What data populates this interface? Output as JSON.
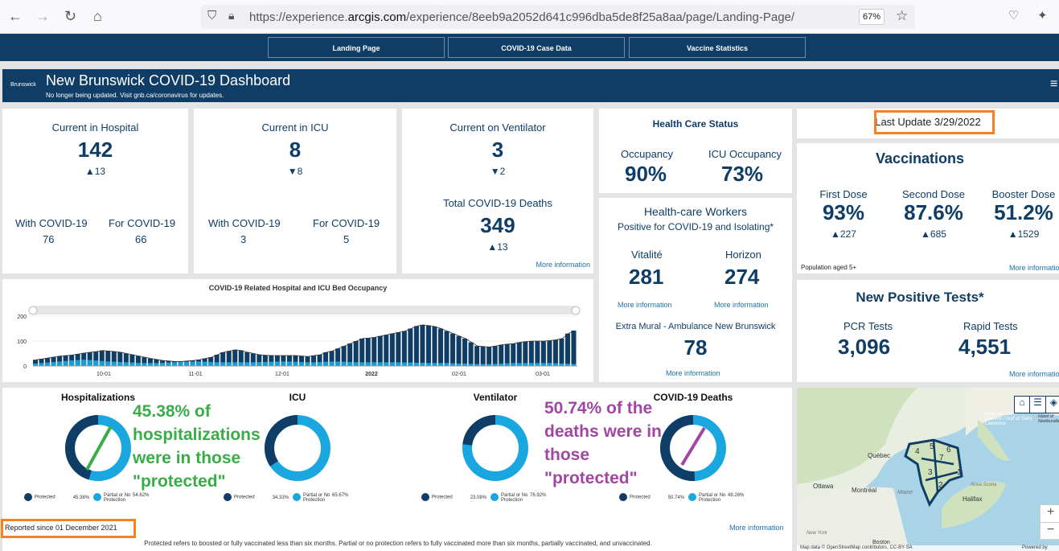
{
  "browser": {
    "url_prefix": "https://experience.",
    "url_domain": "arcgis.com",
    "url_rest": "/experience/8eeb9a2052d641c996dba5de8f25a8aa/page/Landing-Page/",
    "zoom": "67%"
  },
  "nav": [
    "Landing Page",
    "COVID-19 Case Data",
    "Vaccine Statistics"
  ],
  "header": {
    "logo": "Brunswick",
    "title": "New Brunswick COVID-19 Dashboard",
    "subtitle": "No longer being updated. Visit gnb.ca/coronavirus for updates."
  },
  "hospital": {
    "label": "Current in Hospital",
    "value": "142",
    "change": "▲13",
    "with_label": "With COVID-19",
    "with_value": "76",
    "for_label": "For COVID-19",
    "for_value": "66"
  },
  "icu": {
    "label": "Current in ICU",
    "value": "8",
    "change": "▼8",
    "with_label": "With COVID-19",
    "with_value": "3",
    "for_label": "For COVID-19",
    "for_value": "5"
  },
  "ventilator": {
    "label": "Current on Ventilator",
    "value": "3",
    "change": "▼2",
    "deaths_label": "Total COVID-19 Deaths",
    "deaths_value": "349",
    "deaths_change": "▲13",
    "more": "More information"
  },
  "health_status": {
    "title": "Health Care Status",
    "occ_label": "Occupancy",
    "occ_value": "90%",
    "icu_label": "ICU Occupancy",
    "icu_value": "73%"
  },
  "workers": {
    "title": "Health-care Workers",
    "subtitle": "Positive for COVID-19 and Isolating*",
    "vit_label": "Vitalité",
    "vit_value": "281",
    "hor_label": "Horizon",
    "hor_value": "274",
    "more": "More information",
    "em_label": "Extra Mural - Ambulance New Brunswick",
    "em_value": "78"
  },
  "last_update": "Last Update 3/29/2022",
  "vaccinations": {
    "title": "Vaccinations",
    "doses": [
      {
        "label": "First Dose",
        "value": "93%",
        "change": "▲227"
      },
      {
        "label": "Second Dose",
        "value": "87.6%",
        "change": "▲685"
      },
      {
        "label": "Booster Dose",
        "value": "51.2%",
        "change": "▲1529"
      }
    ],
    "note": "Population aged 5+",
    "more": "More information"
  },
  "tests": {
    "title": "New Positive Tests*",
    "pcr_label": "PCR Tests",
    "pcr_value": "3,096",
    "rapid_label": "Rapid Tests",
    "rapid_value": "4,551",
    "more": "More information"
  },
  "chart_data": {
    "type": "bar",
    "title": "COVID-19 Related Hospital and ICU Bed Occupancy",
    "ylim": [
      0,
      200
    ],
    "yticks": [
      "0",
      "100",
      "200"
    ],
    "xticks": [
      "10-01",
      "11-01",
      "12-01",
      "2022",
      "02-01",
      "03-01"
    ],
    "series": [
      {
        "name": "Hospital",
        "color": "#0f3d66",
        "values": [
          25,
          28,
          32,
          36,
          40,
          42,
          44,
          48,
          52,
          55,
          58,
          62,
          60,
          58,
          55,
          50,
          45,
          40,
          35,
          30,
          26,
          22,
          20,
          18,
          18,
          20,
          22,
          25,
          30,
          35,
          45,
          55,
          60,
          65,
          62,
          55,
          50,
          45,
          43,
          42,
          42,
          42,
          42,
          42,
          40,
          38,
          42,
          45,
          55,
          60,
          70,
          80,
          90,
          100,
          110,
          112,
          115,
          120,
          125,
          130,
          135,
          140,
          150,
          160,
          165,
          162,
          158,
          150,
          140,
          130,
          120,
          110,
          95,
          80,
          78,
          76,
          80,
          85,
          88,
          90,
          95,
          98,
          100,
          100,
          100,
          102,
          105,
          110,
          130,
          142
        ]
      },
      {
        "name": "ICU",
        "color": "#1aa7e0",
        "values": [
          10,
          12,
          14,
          16,
          18,
          20,
          22,
          24,
          25,
          24,
          22,
          20,
          18,
          17,
          16,
          15,
          14,
          13,
          12,
          12,
          12,
          13,
          14,
          15,
          16,
          17,
          18,
          18,
          17,
          16,
          15,
          15,
          15,
          15,
          15,
          15,
          15,
          16,
          16,
          17,
          18,
          18,
          18,
          17,
          16,
          15,
          15,
          16,
          17,
          18,
          18,
          17,
          16,
          15,
          15,
          15,
          15,
          15,
          15,
          15,
          15,
          14,
          14,
          13,
          13,
          12,
          12,
          12,
          12,
          11,
          10,
          10,
          9,
          8,
          8,
          8,
          9,
          10,
          11,
          12,
          12,
          12,
          12,
          12,
          12,
          12,
          11,
          10,
          9,
          8
        ]
      }
    ]
  },
  "donuts": [
    {
      "title": "Hospitalizations",
      "protected": 45.38,
      "protected_label": "Protected",
      "protected_pct": "45.38%",
      "partial_label": "Partial or No Protection",
      "partial_pct": "54.62%"
    },
    {
      "title": "ICU",
      "protected": 34.33,
      "protected_label": "Protected",
      "protected_pct": "34.33%",
      "partial_label": "Partial or No Protection",
      "partial_pct": "65.67%"
    },
    {
      "title": "Ventilator",
      "protected": 23.08,
      "protected_label": "Protected",
      "protected_pct": "23.08%",
      "partial_label": "Partial or No Protection",
      "partial_pct": "76.92%"
    },
    {
      "title": "COVID-19 Deaths",
      "protected": 50.74,
      "protected_label": "Protected",
      "protected_pct": "50.74%",
      "partial_label": "Partial or No Protection",
      "partial_pct": "49.26%"
    }
  ],
  "annotations": {
    "green": [
      "45.38% of",
      "hospitalizations",
      "were in those",
      "\"protected\""
    ],
    "purple": [
      "50.74% of the",
      "deaths were in",
      "those",
      "\"protected\""
    ]
  },
  "reported_since": "Reported since 01 December 2021",
  "bottom_more": "More information",
  "footnote": "Protected refers to boosted or fully vaccinated less than six months. Partial or no protection refers to fully vaccinated more than six months, partially vaccinated, and unvaccinated.",
  "map": {
    "labels": [
      "Québec",
      "Ottawa",
      "Montréal",
      "Maine",
      "Halifax",
      "Nova Scotia",
      "New York",
      "Boston",
      "Golfe du Saint-Laurent / Gulf of Saint Lawrence",
      "Island of Newfoundland"
    ],
    "zones": [
      "1",
      "2",
      "3",
      "4",
      "5",
      "6",
      "7"
    ],
    "attribution": "Map data © OpenStreetMap contributors, CC-BY-SA",
    "powered": "Powered by"
  },
  "colors": {
    "dark": "#0f3d66",
    "light": "#1aa7e0",
    "green": "#3aad48",
    "purple": "#a346a3",
    "orange": "#f58025"
  }
}
